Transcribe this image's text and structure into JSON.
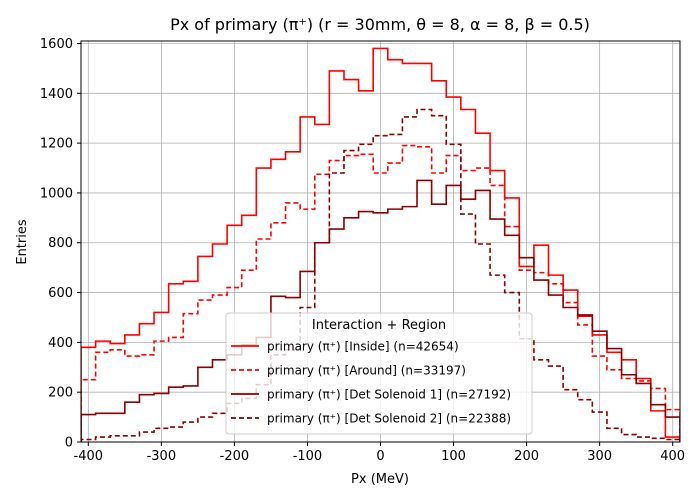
{
  "chart_data": {
    "type": "step-histogram",
    "title": "Px of primary (π⁺) (r = 30mm, θ = 8, α = 8, β = 0.5)",
    "xlabel": "Px (MeV)",
    "ylabel": "Entries",
    "xlim": [
      -410,
      410
    ],
    "ylim": [
      0,
      1610
    ],
    "xticks": [
      -400,
      -300,
      -200,
      -100,
      0,
      100,
      200,
      300,
      400
    ],
    "yticks": [
      0,
      200,
      400,
      600,
      800,
      1000,
      1200,
      1400,
      1600
    ],
    "grid": true,
    "legend": {
      "title": "Interaction + Region",
      "placement": "lower-center"
    },
    "bin_edges": [
      -410,
      -390,
      -370,
      -350,
      -330,
      -310,
      -290,
      -270,
      -250,
      -230,
      -210,
      -190,
      -170,
      -150,
      -130,
      -110,
      -90,
      -70,
      -50,
      -30,
      -10,
      10,
      30,
      50,
      70,
      90,
      110,
      130,
      150,
      170,
      190,
      210,
      230,
      250,
      270,
      290,
      310,
      330,
      350,
      370,
      390,
      410
    ],
    "series": [
      {
        "name": "primary (π⁺) [Inside] (n=42654)",
        "color": "#ff0000",
        "dash": "solid",
        "counts": [
          380,
          405,
          395,
          430,
          475,
          520,
          635,
          645,
          745,
          795,
          870,
          910,
          1100,
          1135,
          1165,
          1305,
          1275,
          1490,
          1455,
          1410,
          1580,
          1535,
          1520,
          1520,
          1450,
          1385,
          1335,
          1240,
          1090,
          980,
          705,
          790,
          670,
          610,
          505,
          430,
          360,
          330,
          255,
          125,
          20
        ]
      },
      {
        "name": "primary (π⁺) [Around] (n=33197)",
        "color": "#ff0000",
        "dash": "dashed",
        "counts": [
          250,
          360,
          370,
          345,
          350,
          405,
          420,
          515,
          570,
          590,
          620,
          690,
          815,
          880,
          960,
          935,
          1075,
          1130,
          1150,
          1155,
          1080,
          1120,
          1190,
          1185,
          1080,
          1150,
          1090,
          1100,
          1030,
          865,
          690,
          680,
          635,
          560,
          470,
          345,
          290,
          255,
          245,
          215,
          130
        ]
      },
      {
        "name": "primary (π⁺) [Det Solenoid 1] (n=27192)",
        "color": "#8b0000",
        "dash": "solid",
        "counts": [
          110,
          115,
          115,
          160,
          190,
          195,
          220,
          225,
          300,
          330,
          350,
          390,
          420,
          585,
          580,
          685,
          800,
          855,
          900,
          925,
          920,
          935,
          945,
          1050,
          955,
          1030,
          975,
          1010,
          895,
          830,
          740,
          650,
          590,
          540,
          510,
          445,
          375,
          270,
          235,
          150,
          100
        ]
      },
      {
        "name": "primary (π⁺) [Det Solenoid 2] (n=22388)",
        "color": "#8b0000",
        "dash": "dashed",
        "counts": [
          10,
          20,
          25,
          25,
          40,
          55,
          60,
          80,
          100,
          115,
          155,
          175,
          230,
          350,
          370,
          540,
          800,
          1080,
          1170,
          1195,
          1230,
          1235,
          1305,
          1335,
          1310,
          1195,
          915,
          795,
          670,
          600,
          415,
          330,
          305,
          210,
          170,
          120,
          55,
          30,
          20,
          15,
          10
        ]
      }
    ]
  }
}
